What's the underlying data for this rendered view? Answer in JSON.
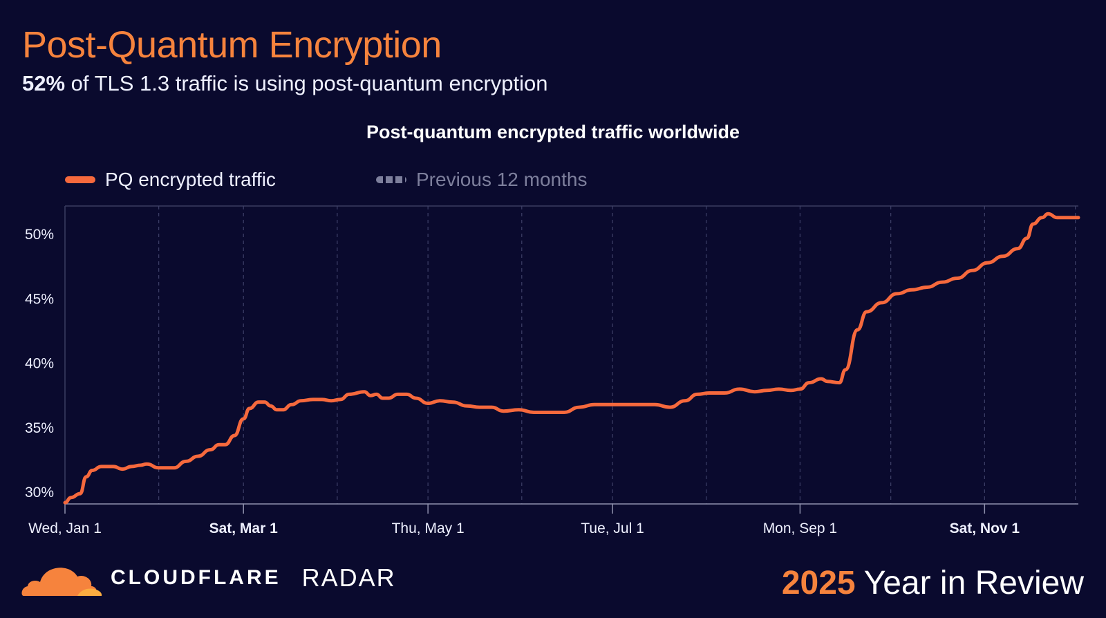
{
  "header": {
    "title": "Post-Quantum Encryption",
    "subtitle_highlight": "52%",
    "subtitle_rest": " of TLS 1.3 traffic is using post-quantum encryption"
  },
  "legend": [
    {
      "label": "PQ encrypted traffic",
      "color": "#f6693d",
      "style": "solid"
    },
    {
      "label": "Previous 12 months",
      "color": "#7d7f9c",
      "style": "dashed"
    }
  ],
  "footer": {
    "brand": "CLOUDFLARE",
    "product": "RADAR",
    "year": "2025",
    "tagline": "Year in Review"
  },
  "colors": {
    "background": "#0a0a2e",
    "accent": "#f6833d",
    "line": "#f6693d"
  },
  "chart_data": {
    "type": "line",
    "title": "Post-quantum encrypted traffic worldwide",
    "xlabel": "",
    "ylabel": "",
    "x_ticks": [
      {
        "label": "Wed, Jan 1",
        "day": 0,
        "bold": false
      },
      {
        "label": "Sat, Mar 1",
        "day": 59,
        "bold": true
      },
      {
        "label": "Thu, May 1",
        "day": 120,
        "bold": false
      },
      {
        "label": "Tue, Jul 1",
        "day": 181,
        "bold": false
      },
      {
        "label": "Mon, Sep 1",
        "day": 243,
        "bold": false
      },
      {
        "label": "Sat, Nov 1",
        "day": 304,
        "bold": true
      }
    ],
    "grid_days": [
      0,
      31,
      59,
      90,
      120,
      151,
      181,
      212,
      243,
      273,
      304,
      334,
      364
    ],
    "x_range_days": [
      0,
      335
    ],
    "y_ticks": [
      30,
      35,
      40,
      45,
      50
    ],
    "ylim": [
      29.1,
      52.2
    ],
    "grid": true,
    "legend_position": "top-left",
    "series": [
      {
        "name": "PQ encrypted traffic",
        "points": [
          [
            0,
            29.2
          ],
          [
            2,
            29.6
          ],
          [
            5,
            29.9
          ],
          [
            7,
            31.2
          ],
          [
            9,
            31.7
          ],
          [
            12,
            32.0
          ],
          [
            16,
            32.0
          ],
          [
            19,
            31.8
          ],
          [
            22,
            32.0
          ],
          [
            25,
            32.1
          ],
          [
            27,
            32.2
          ],
          [
            31,
            31.9
          ],
          [
            36,
            31.9
          ],
          [
            40,
            32.4
          ],
          [
            44,
            32.8
          ],
          [
            48,
            33.3
          ],
          [
            51,
            33.7
          ],
          [
            53,
            33.7
          ],
          [
            56,
            34.4
          ],
          [
            59,
            35.7
          ],
          [
            61,
            36.5
          ],
          [
            64,
            37.0
          ],
          [
            66,
            37.0
          ],
          [
            68,
            36.7
          ],
          [
            70,
            36.4
          ],
          [
            72,
            36.4
          ],
          [
            75,
            36.8
          ],
          [
            78,
            37.1
          ],
          [
            82,
            37.2
          ],
          [
            85,
            37.2
          ],
          [
            88,
            37.1
          ],
          [
            91,
            37.2
          ],
          [
            94,
            37.6
          ],
          [
            99,
            37.8
          ],
          [
            101,
            37.5
          ],
          [
            103,
            37.6
          ],
          [
            105,
            37.3
          ],
          [
            107,
            37.3
          ],
          [
            110,
            37.6
          ],
          [
            113,
            37.6
          ],
          [
            116,
            37.3
          ],
          [
            120,
            36.9
          ],
          [
            124,
            37.1
          ],
          [
            128,
            37.0
          ],
          [
            133,
            36.7
          ],
          [
            137,
            36.6
          ],
          [
            141,
            36.6
          ],
          [
            145,
            36.3
          ],
          [
            150,
            36.4
          ],
          [
            155,
            36.2
          ],
          [
            160,
            36.2
          ],
          [
            165,
            36.2
          ],
          [
            170,
            36.6
          ],
          [
            175,
            36.8
          ],
          [
            180,
            36.8
          ],
          [
            185,
            36.8
          ],
          [
            190,
            36.8
          ],
          [
            195,
            36.8
          ],
          [
            200,
            36.6
          ],
          [
            205,
            37.1
          ],
          [
            209,
            37.6
          ],
          [
            213,
            37.7
          ],
          [
            218,
            37.7
          ],
          [
            223,
            38.0
          ],
          [
            228,
            37.8
          ],
          [
            232,
            37.9
          ],
          [
            236,
            38.0
          ],
          [
            240,
            37.9
          ],
          [
            243,
            38.0
          ],
          [
            246,
            38.5
          ],
          [
            250,
            38.8
          ],
          [
            252,
            38.6
          ],
          [
            256,
            38.5
          ],
          [
            258,
            39.5
          ],
          [
            262,
            42.6
          ],
          [
            265,
            44.0
          ],
          [
            270,
            44.7
          ],
          [
            275,
            45.4
          ],
          [
            280,
            45.7
          ],
          [
            285,
            45.9
          ],
          [
            290,
            46.3
          ],
          [
            295,
            46.6
          ],
          [
            300,
            47.2
          ],
          [
            305,
            47.8
          ],
          [
            310,
            48.3
          ],
          [
            315,
            48.9
          ],
          [
            318,
            49.7
          ],
          [
            320,
            50.8
          ],
          [
            323,
            51.3
          ],
          [
            325,
            51.6
          ],
          [
            328,
            51.3
          ],
          [
            332,
            51.3
          ],
          [
            335,
            51.3
          ]
        ]
      }
    ]
  }
}
